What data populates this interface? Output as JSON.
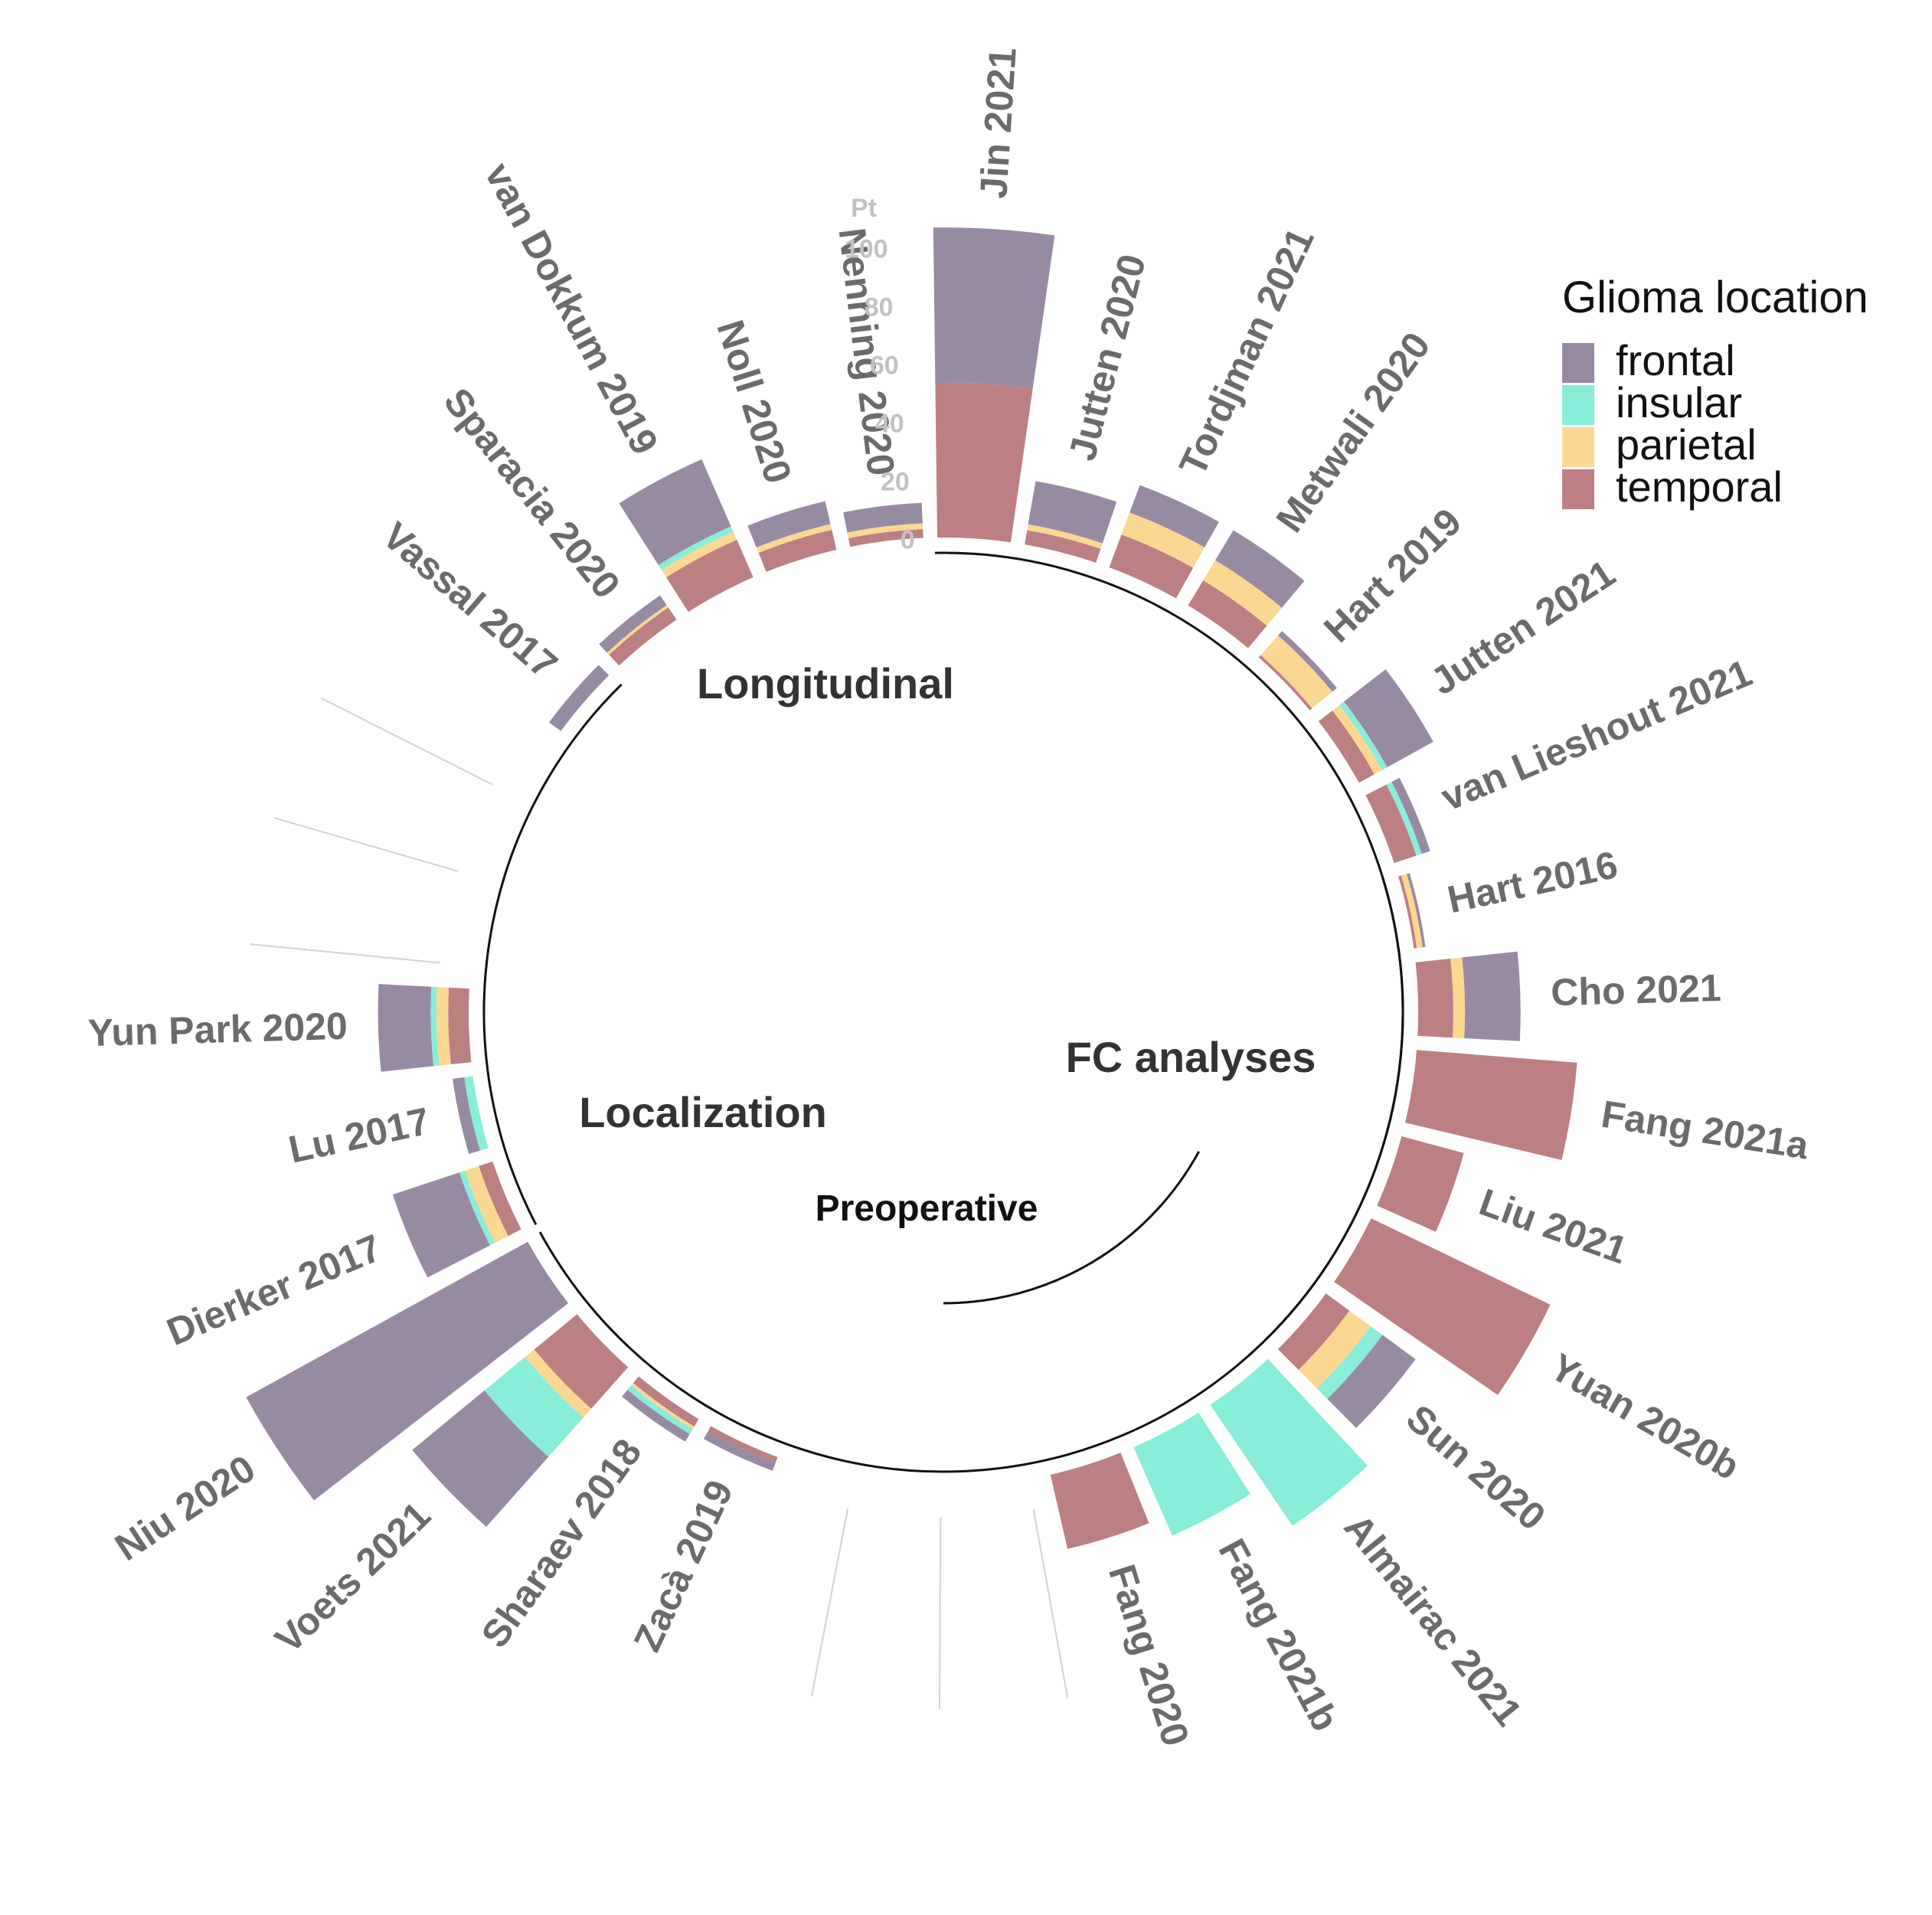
{
  "chart_data": {
    "type": "circular-stacked-bar",
    "title": "",
    "axis_label": "Pt",
    "ticks": [
      0,
      20,
      40,
      60,
      80,
      100
    ],
    "ylim": [
      0,
      110
    ],
    "colors": {
      "frontal": "#978aa3",
      "insular": "#88eeda",
      "parietal": "#fbd891",
      "temporal": "#bc7f82"
    },
    "legend": {
      "title": "Glioma location",
      "items": [
        "frontal",
        "insular",
        "parietal",
        "temporal"
      ]
    },
    "stack_order": [
      "temporal",
      "parietal",
      "insular",
      "frontal"
    ],
    "groups": [
      {
        "name": "FC analyses",
        "subgroup": "",
        "range": [
          0,
          13
        ]
      },
      {
        "name": "Localization",
        "subgroup": "Preoperative",
        "range": [
          7,
          23
        ]
      },
      {
        "name": "Longitudinal",
        "subgroup": "",
        "range": [
          23,
          30
        ]
      }
    ],
    "studies": [
      {
        "name": "Jin 2021",
        "frontal": 53,
        "insular": 0,
        "parietal": 0,
        "temporal": 53
      },
      {
        "name": "Jutten 2020",
        "frontal": 15,
        "insular": 0,
        "parietal": 2,
        "temporal": 5
      },
      {
        "name": "Tordjman 2021",
        "frontal": 10,
        "insular": 0,
        "parietal": 8,
        "temporal": 12
      },
      {
        "name": "Metwali 2020",
        "frontal": 12,
        "insular": 0,
        "parietal": 8,
        "temporal": 10
      },
      {
        "name": "Hart 2019",
        "frontal": 2,
        "insular": 0,
        "parietal": 9,
        "temporal": 1
      },
      {
        "name": "Jutten 2021",
        "frontal": 18,
        "insular": 2,
        "parietal": 3,
        "temporal": 6
      },
      {
        "name": "van Lieshout 2021",
        "frontal": 3,
        "insular": 2,
        "parietal": 0,
        "temporal": 8
      },
      {
        "name": "Hart 2016",
        "frontal": 1,
        "insular": 0,
        "parietal": 2,
        "temporal": 1
      },
      {
        "name": "Cho 2021",
        "frontal": 19,
        "insular": 0,
        "parietal": 4,
        "temporal": 12
      },
      {
        "name": "Fang 2021a",
        "frontal": 0,
        "insular": 0,
        "parietal": 0,
        "temporal": 55
      },
      {
        "name": "Liu 2021",
        "frontal": 0,
        "insular": 0,
        "parietal": 0,
        "temporal": 22
      },
      {
        "name": "Yuan 2020b",
        "frontal": 0,
        "insular": 0,
        "parietal": 0,
        "temporal": 68
      },
      {
        "name": "Sun 2020",
        "frontal": 14,
        "insular": 5,
        "parietal": 9,
        "temporal": 10
      },
      {
        "name": "Almairac 2021",
        "frontal": 0,
        "insular": 50,
        "parietal": 0,
        "temporal": 0
      },
      {
        "name": "Fang 2021b",
        "frontal": 0,
        "insular": 33,
        "parietal": 0,
        "temporal": 0
      },
      {
        "name": "Fang 2020",
        "frontal": 0,
        "insular": 0,
        "parietal": 0,
        "temporal": 26
      },
      {
        "name": "",
        "frontal": 0,
        "insular": 0,
        "parietal": 0,
        "temporal": 0
      },
      {
        "name": "",
        "frontal": 0,
        "insular": 0,
        "parietal": 0,
        "temporal": 0
      },
      {
        "name": "",
        "frontal": 0,
        "insular": 0,
        "parietal": 0,
        "temporal": 0
      },
      {
        "name": "Zacà 2019",
        "frontal": 3,
        "insular": 0,
        "parietal": 0,
        "temporal": 2
      },
      {
        "name": "Sharaev 2018",
        "frontal": 3,
        "insular": 2,
        "parietal": 1,
        "temporal": 3
      },
      {
        "name": "Voets 2021",
        "frontal": 32,
        "insular": 18,
        "parietal": 4,
        "temporal": 19
      },
      {
        "name": "Niu 2020",
        "frontal": 110,
        "insular": 0,
        "parietal": 0,
        "temporal": 0
      },
      {
        "name": "Dierker 2017",
        "frontal": 24,
        "insular": 2,
        "parietal": 5,
        "temporal": 5
      },
      {
        "name": "Lu 2017",
        "frontal": 4,
        "insular": 3,
        "parietal": 0,
        "temporal": 0
      },
      {
        "name": "Yun Park 2020",
        "frontal": 18,
        "insular": 2,
        "parietal": 4,
        "temporal": 7
      },
      {
        "name": "",
        "frontal": 0,
        "insular": 0,
        "parietal": 0,
        "temporal": 0
      },
      {
        "name": "",
        "frontal": 0,
        "insular": 0,
        "parietal": 0,
        "temporal": 0
      },
      {
        "name": "",
        "frontal": 0,
        "insular": 0,
        "parietal": 0,
        "temporal": 0
      },
      {
        "name": "Vassal 2017",
        "frontal": 5,
        "insular": 0,
        "parietal": 0,
        "temporal": 0
      },
      {
        "name": "Sparacia 2020",
        "frontal": 4,
        "insular": 0,
        "parietal": 1,
        "temporal": 5
      },
      {
        "name": "van Dokkum 2019",
        "frontal": 25,
        "insular": 2,
        "parietal": 3,
        "temporal": 14
      },
      {
        "name": "Noll 2020",
        "frontal": 8,
        "insular": 0,
        "parietal": 2,
        "temporal": 7
      },
      {
        "name": "Nenning 2020",
        "frontal": 7,
        "insular": 0,
        "parietal": 2,
        "temporal": 3
      }
    ]
  }
}
